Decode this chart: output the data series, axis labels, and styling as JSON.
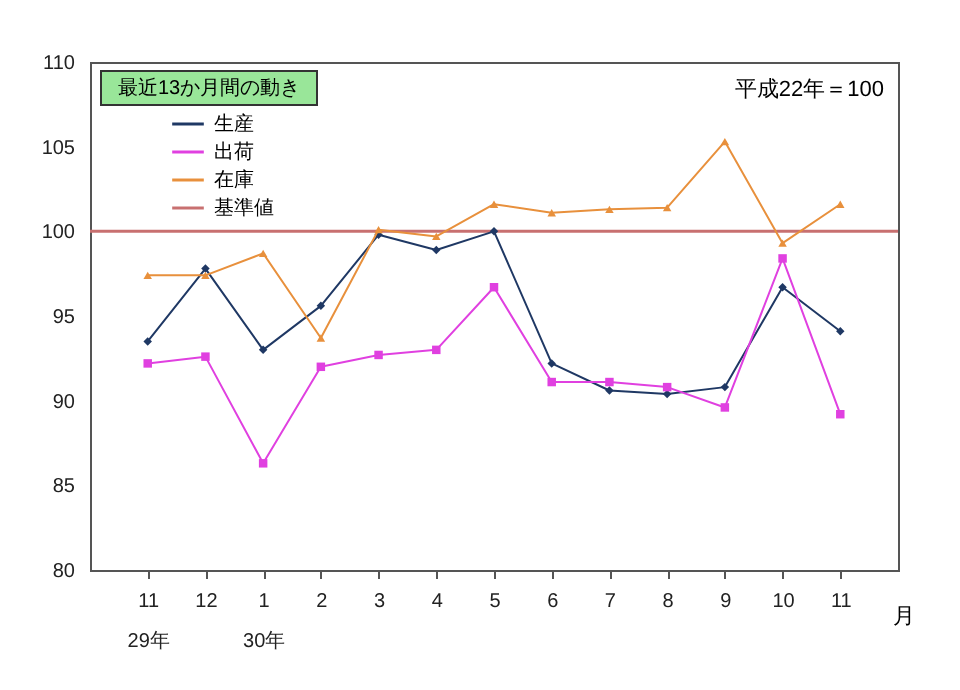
{
  "chart_data": {
    "type": "line",
    "title": "最近13か月間の動き",
    "annotations": [
      "平成22年＝100"
    ],
    "xlabel": "月",
    "categories": [
      "11\n29年",
      "12",
      "1\n30年",
      "2",
      "3",
      "4",
      "5",
      "6",
      "7",
      "8",
      "9",
      "10",
      "11"
    ],
    "series": [
      {
        "name": "生産",
        "color": "#1f3864",
        "marker": "diamond",
        "values": [
          93.5,
          97.8,
          93.0,
          95.6,
          99.8,
          98.9,
          100.0,
          92.2,
          90.6,
          90.4,
          90.8,
          96.7,
          94.1
        ]
      },
      {
        "name": "出荷",
        "color": "#e040e0",
        "marker": "square",
        "values": [
          92.2,
          92.6,
          86.3,
          92.0,
          92.7,
          93.0,
          96.7,
          91.1,
          91.1,
          90.8,
          89.6,
          98.4,
          89.2
        ]
      },
      {
        "name": "在庫",
        "color": "#e8903c",
        "marker": "triangle",
        "values": [
          97.4,
          97.4,
          98.7,
          93.7,
          100.1,
          99.7,
          101.6,
          101.1,
          101.3,
          101.4,
          105.3,
          99.3,
          101.6
        ]
      }
    ],
    "ref_lines": [
      {
        "axis": "y",
        "value": 100,
        "label": "基準値",
        "color": "#c87070"
      }
    ],
    "ylim": [
      80,
      110
    ],
    "yticks": [
      80,
      85,
      90,
      95,
      100,
      105,
      110
    ],
    "legend": "top left"
  }
}
